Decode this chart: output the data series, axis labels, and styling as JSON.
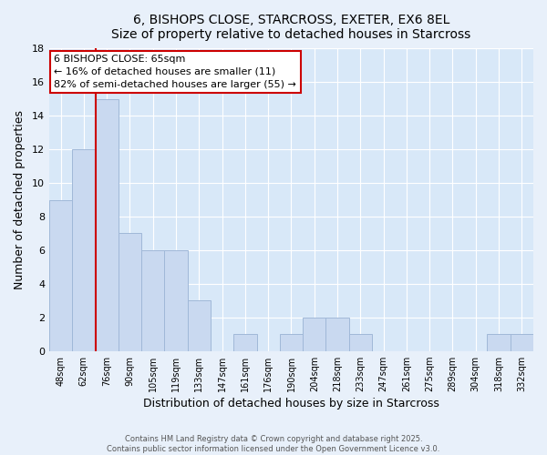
{
  "title_line1": "6, BISHOPS CLOSE, STARCROSS, EXETER, EX6 8EL",
  "title_line2": "Size of property relative to detached houses in Starcross",
  "xlabel": "Distribution of detached houses by size in Starcross",
  "ylabel": "Number of detached properties",
  "bin_labels": [
    "48sqm",
    "62sqm",
    "76sqm",
    "90sqm",
    "105sqm",
    "119sqm",
    "133sqm",
    "147sqm",
    "161sqm",
    "176sqm",
    "190sqm",
    "204sqm",
    "218sqm",
    "233sqm",
    "247sqm",
    "261sqm",
    "275sqm",
    "289sqm",
    "304sqm",
    "318sqm",
    "332sqm"
  ],
  "bar_values": [
    9,
    12,
    15,
    7,
    6,
    6,
    3,
    0,
    1,
    0,
    1,
    2,
    2,
    1,
    0,
    0,
    0,
    0,
    0,
    1,
    1
  ],
  "bar_color": "#c9d9f0",
  "bar_edge_color": "#a0b8d8",
  "vline_x": 1.5,
  "vline_color": "#cc0000",
  "annotation_title": "6 BISHOPS CLOSE: 65sqm",
  "annotation_line2": "← 16% of detached houses are smaller (11)",
  "annotation_line3": "82% of semi-detached houses are larger (55) →",
  "annotation_box_color": "#ffffff",
  "annotation_box_edge": "#cc0000",
  "ylim": [
    0,
    18
  ],
  "yticks": [
    0,
    2,
    4,
    6,
    8,
    10,
    12,
    14,
    16,
    18
  ],
  "footer_line1": "Contains HM Land Registry data © Crown copyright and database right 2025.",
  "footer_line2": "Contains public sector information licensed under the Open Government Licence v3.0.",
  "bg_color": "#e8f0fa",
  "plot_bg_color": "#d8e8f8",
  "grid_color": "#ffffff"
}
